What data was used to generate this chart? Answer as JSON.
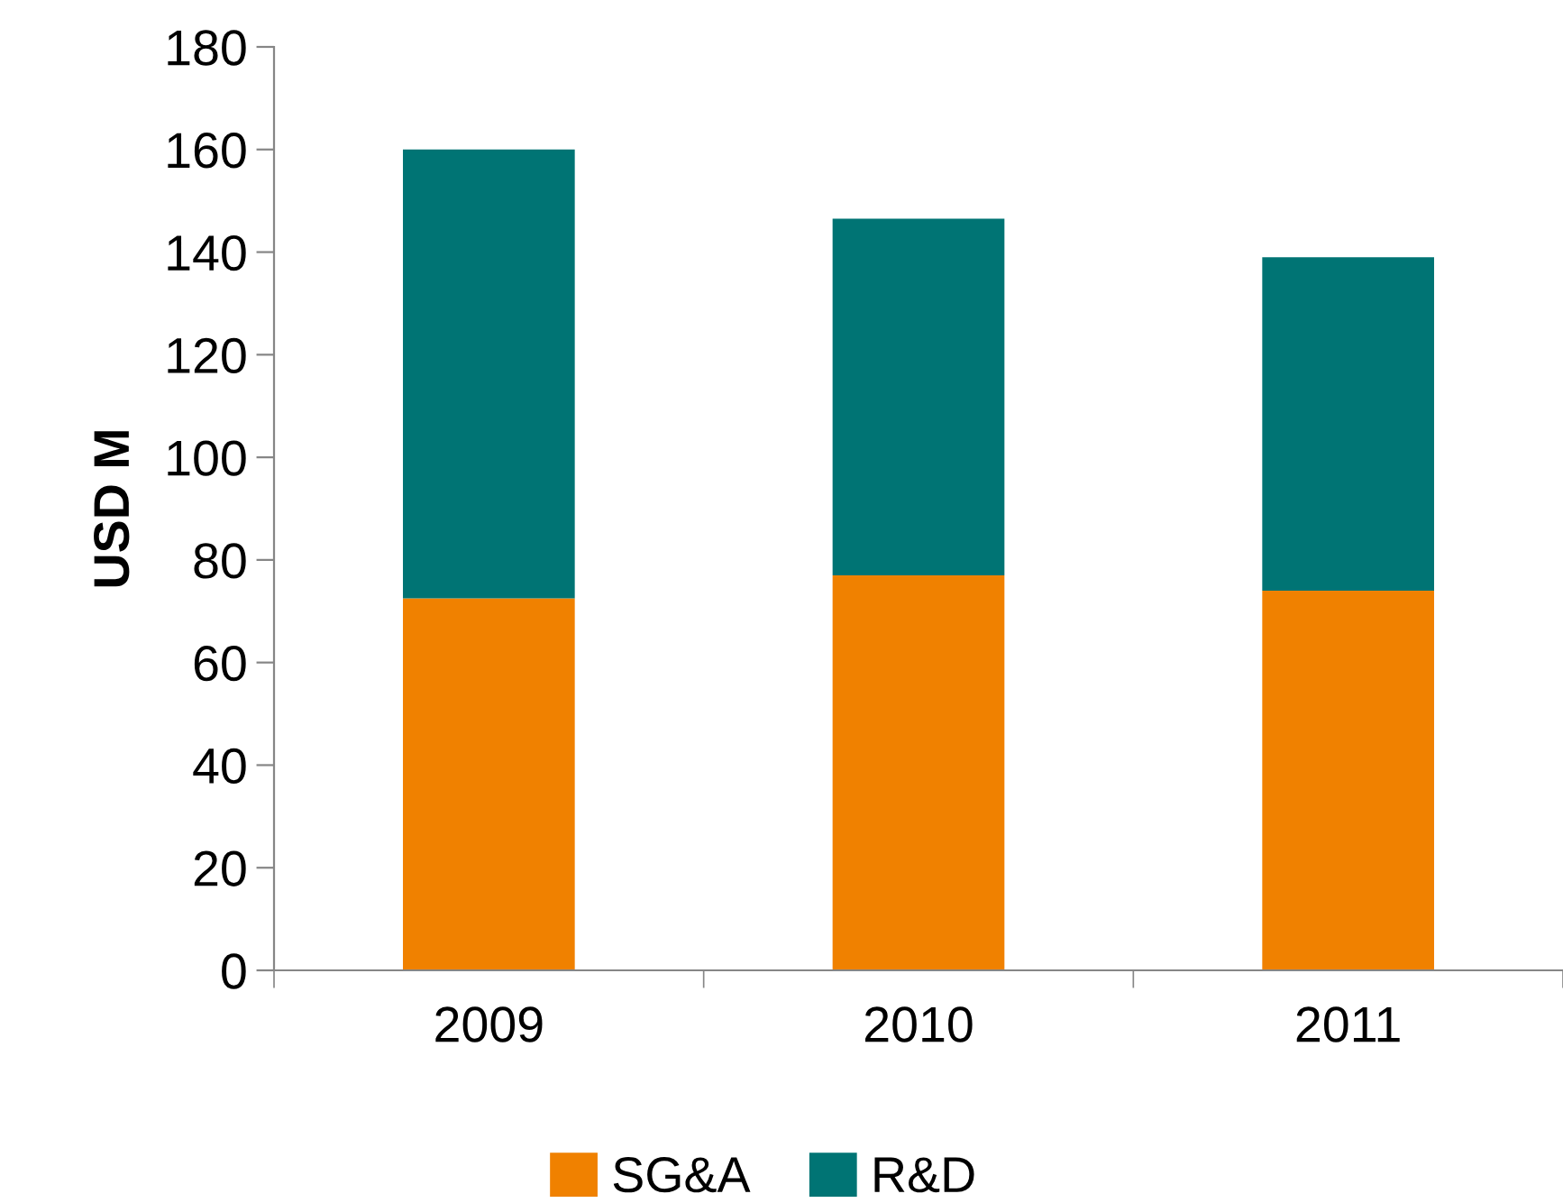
{
  "chart_data": {
    "type": "bar",
    "stacked": true,
    "ylabel": "USD M",
    "categories": [
      "2009",
      "2010",
      "2011"
    ],
    "series": [
      {
        "name": "SG&A",
        "color": "#f08100",
        "values": [
          72.5,
          77,
          74
        ]
      },
      {
        "name": "R&D",
        "color": "#007474",
        "values": [
          87.5,
          69.5,
          65
        ]
      }
    ],
    "ylim": [
      0,
      180
    ],
    "yticks": [
      0,
      20,
      40,
      60,
      80,
      100,
      120,
      140,
      160,
      180
    ],
    "grid": false,
    "legend": "bottom"
  }
}
